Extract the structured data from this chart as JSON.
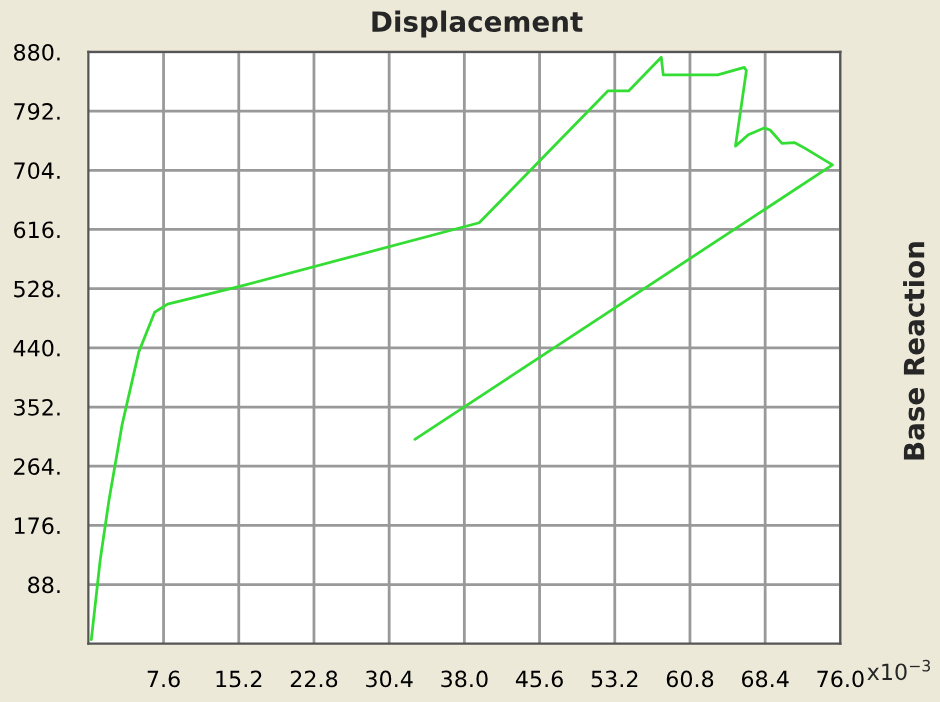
{
  "chart_data": {
    "type": "line",
    "title": "Displacement",
    "ylabel": "Base Reaction",
    "annotations": [
      "x10$^{−3}$"
    ],
    "series": [
      {
        "color": "#33dd33",
        "x": [
          0.3,
          1.2,
          2.1,
          3.4,
          5.1,
          6.7,
          8.0,
          15.2,
          39.5,
          52.5,
          54.6,
          57.9,
          58.1,
          63.6,
          66.3,
          66.5,
          65.4,
          66.7,
          68.3,
          68.9,
          70.1,
          71.4,
          72.4,
          75.2,
          33.0
        ],
        "values": [
          6,
          125,
          215,
          325,
          434,
          493,
          505,
          531,
          626,
          822,
          822,
          872,
          846,
          846,
          857,
          852,
          740,
          757,
          767,
          764,
          744,
          745,
          737,
          712,
          304
        ]
      }
    ],
    "xlim": [
      0,
      76
    ],
    "ylim": [
      0,
      880
    ],
    "xticks": [
      7.6,
      15.2,
      22.8,
      30.4,
      {
        "value": 38,
        "label": "38.0"
      },
      45.6,
      53.2,
      60.8,
      68.4,
      {
        "value": 76,
        "label": "76.0"
      }
    ],
    "yticks": [
      {
        "value": 88,
        "label": "88."
      },
      {
        "value": 176,
        "label": "176."
      },
      {
        "value": 264,
        "label": "264."
      },
      {
        "value": 352,
        "label": "352."
      },
      {
        "value": 440,
        "label": "440."
      },
      {
        "value": 528,
        "label": "528."
      },
      {
        "value": 616,
        "label": "616."
      },
      {
        "value": 704,
        "label": "704."
      },
      {
        "value": 792,
        "label": "792."
      },
      {
        "value": 880,
        "label": "880."
      }
    ],
    "grid": true
  }
}
